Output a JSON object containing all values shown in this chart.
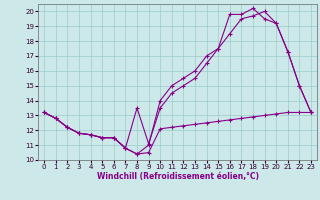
{
  "xlabel": "Windchill (Refroidissement éolien,°C)",
  "bg_color": "#cce8e8",
  "line_color": "#880088",
  "grid_color": "#99cccc",
  "xlim": [
    -0.5,
    23.5
  ],
  "ylim": [
    10,
    20.5
  ],
  "xticks": [
    0,
    1,
    2,
    3,
    4,
    5,
    6,
    7,
    8,
    9,
    10,
    11,
    12,
    13,
    14,
    15,
    16,
    17,
    18,
    19,
    20,
    21,
    22,
    23
  ],
  "yticks": [
    10,
    11,
    12,
    13,
    14,
    15,
    16,
    17,
    18,
    19,
    20
  ],
  "line1_x": [
    0,
    1,
    2,
    3,
    4,
    5,
    6,
    7,
    8,
    9,
    10,
    11,
    12,
    13,
    14,
    15,
    16,
    17,
    18,
    19,
    20,
    21,
    22,
    23
  ],
  "line1_y": [
    13.2,
    12.8,
    12.2,
    11.8,
    11.7,
    11.5,
    11.5,
    10.8,
    10.4,
    10.5,
    12.1,
    12.2,
    12.3,
    12.4,
    12.5,
    12.6,
    12.7,
    12.8,
    12.9,
    13.0,
    13.1,
    13.2,
    13.2,
    13.2
  ],
  "line2_x": [
    0,
    1,
    2,
    3,
    4,
    5,
    6,
    7,
    8,
    9,
    10,
    11,
    12,
    13,
    14,
    15,
    16,
    17,
    18,
    19,
    20,
    21,
    22,
    23
  ],
  "line2_y": [
    13.2,
    12.8,
    12.2,
    11.8,
    11.7,
    11.5,
    11.5,
    10.8,
    13.5,
    11.1,
    13.5,
    14.5,
    15.0,
    15.5,
    16.5,
    17.5,
    18.5,
    19.5,
    19.7,
    20.0,
    19.2,
    17.3,
    15.0,
    13.2
  ],
  "line3_x": [
    0,
    1,
    2,
    3,
    4,
    5,
    6,
    7,
    8,
    9,
    10,
    11,
    12,
    13,
    14,
    15,
    16,
    17,
    18,
    19,
    20,
    21,
    22,
    23
  ],
  "line3_y": [
    13.2,
    12.8,
    12.2,
    11.8,
    11.7,
    11.5,
    11.5,
    10.8,
    10.4,
    11.0,
    14.0,
    15.0,
    15.5,
    16.0,
    17.0,
    17.5,
    19.8,
    19.8,
    20.2,
    19.5,
    19.2,
    17.3,
    15.0,
    13.2
  ]
}
